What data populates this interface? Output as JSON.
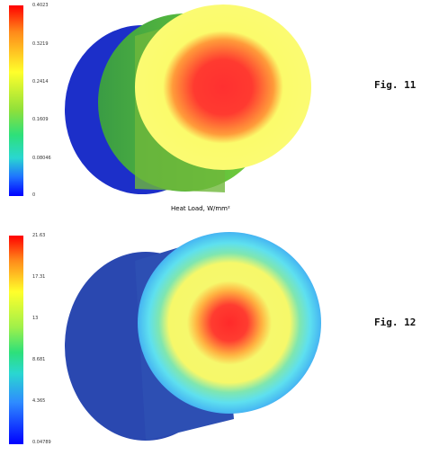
{
  "figure1": {
    "label": "Fig. 11",
    "colorbar_ticks": [
      "0.4023",
      "0.3219",
      "0.2414",
      "0.1609",
      "0.08046",
      "0"
    ],
    "caption": "Heat Load, W/mm²"
  },
  "figure2": {
    "label": "Fig. 12",
    "colorbar_ticks": [
      "21.63",
      "17.31",
      "13",
      "8.681",
      "4.365",
      "0.04789"
    ]
  },
  "colors": {
    "hot": "#ff3030",
    "warm": "#fbfb6b",
    "mid_green": "#5cbf3c",
    "cool_blue": "#1c2fc9",
    "shell_blue2": "#2d4fb3"
  }
}
